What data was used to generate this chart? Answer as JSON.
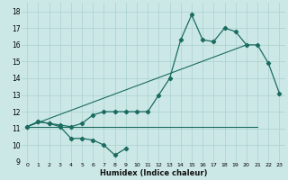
{
  "xlabel": "Humidex (Indice chaleur)",
  "xlim": [
    -0.5,
    23.5
  ],
  "ylim": [
    9,
    18.5
  ],
  "yticks": [
    9,
    10,
    11,
    12,
    13,
    14,
    15,
    16,
    17,
    18
  ],
  "xticks": [
    0,
    1,
    2,
    3,
    4,
    5,
    6,
    7,
    8,
    9,
    10,
    11,
    12,
    13,
    14,
    15,
    16,
    17,
    18,
    19,
    20,
    21,
    22,
    23
  ],
  "bg_color": "#cce8e6",
  "line_color": "#1a6b60",
  "grid_color": "#afd4d2",
  "line1_x": [
    0,
    1,
    2,
    3,
    4,
    5,
    6,
    7,
    8,
    9,
    10,
    11,
    12,
    13,
    14,
    15,
    16,
    17,
    18,
    19,
    20,
    21,
    22,
    23
  ],
  "line1_y": [
    11.1,
    11.4,
    11.3,
    11.2,
    11.1,
    11.3,
    11.8,
    12.0,
    12.0,
    12.0,
    12.0,
    12.0,
    13.0,
    14.0,
    16.3,
    17.8,
    16.3,
    16.2,
    17.0,
    16.8,
    16.0,
    16.0,
    14.9,
    13.1
  ],
  "line2_x": [
    0,
    1,
    2,
    3,
    4,
    5,
    6,
    7,
    8,
    9
  ],
  "line2_y": [
    11.1,
    11.4,
    11.3,
    11.1,
    10.4,
    10.4,
    10.3,
    10.0,
    9.4,
    9.8
  ],
  "line3_x": [
    0,
    20
  ],
  "line3_y": [
    11.1,
    16.0
  ],
  "line4_x": [
    0,
    21
  ],
  "line4_y": [
    11.1,
    11.1
  ]
}
